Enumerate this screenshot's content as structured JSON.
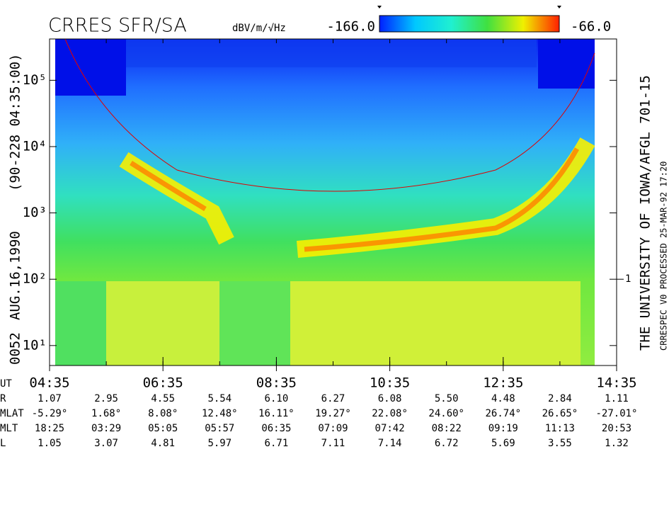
{
  "chart_data": {
    "type": "spectrogram",
    "title": "CRRES SFR/SA",
    "colorbar": {
      "label": "dBV/m/√Hz",
      "clim": [
        {
          "value": -166,
          "label": "-166.0"
        },
        {
          "value": -66,
          "label": "-66.0"
        }
      ]
    },
    "ylim": [
      5,
      420000
    ],
    "log_y": true,
    "yticks": [
      {
        "value": 10,
        "label": "10¹"
      },
      {
        "value": 100,
        "label": "10²"
      },
      {
        "value": 1000,
        "label": "10³"
      },
      {
        "value": 10000,
        "label": "10⁴"
      },
      {
        "value": 100000,
        "label": "10⁵"
      }
    ],
    "y2lim": [
      0.05,
      4200
    ],
    "y2ticks": [
      1
    ],
    "xlim": [
      275,
      875
    ],
    "xticks": [
      {
        "value": 275,
        "label": "04:35"
      },
      {
        "value": 395,
        "label": "06:35"
      },
      {
        "value": 515,
        "label": "08:35"
      },
      {
        "value": 635,
        "label": "10:35"
      },
      {
        "value": 755,
        "label": "12:35"
      },
      {
        "value": 875,
        "label": "14:35"
      }
    ],
    "x_label": "UT",
    "left_texts": [
      "0052",
      "AUG.16,1990",
      "(90-228 04:35:00)"
    ],
    "right_texts": [
      "THE UNIVERSITY OF IOWA/AFGL 701-15",
      "CRRESPEC V0   PROCESSED 25-MAR-92  17:20"
    ],
    "ephemeris": {
      "x": [
        275,
        335,
        395,
        455,
        515,
        575,
        635,
        695,
        755,
        815,
        875
      ],
      "rows": [
        {
          "label": "R",
          "values": [
            "1.07",
            "2.95",
            "4.55",
            "5.54",
            "6.10",
            "6.27",
            "6.08",
            "5.50",
            "4.48",
            "2.84",
            "1.11"
          ]
        },
        {
          "label": "MLAT",
          "values": [
            "-5.29°",
            "1.68°",
            "8.08°",
            "12.48°",
            "16.11°",
            "19.27°",
            "22.08°",
            "24.60°",
            "26.74°",
            "26.65°",
            "-27.01°"
          ]
        },
        {
          "label": "MLT",
          "values": [
            "18:25",
            "03:29",
            "05:05",
            "05:57",
            "06:35",
            "07:09",
            "07:42",
            "08:22",
            "09:19",
            "11:13",
            "20:53"
          ]
        },
        {
          "label": "L",
          "values": [
            "1.05",
            "3.07",
            "4.81",
            "5.97",
            "6.71",
            "7.11",
            "7.14",
            "6.72",
            "5.69",
            "3.55",
            "1.32"
          ]
        }
      ]
    }
  }
}
